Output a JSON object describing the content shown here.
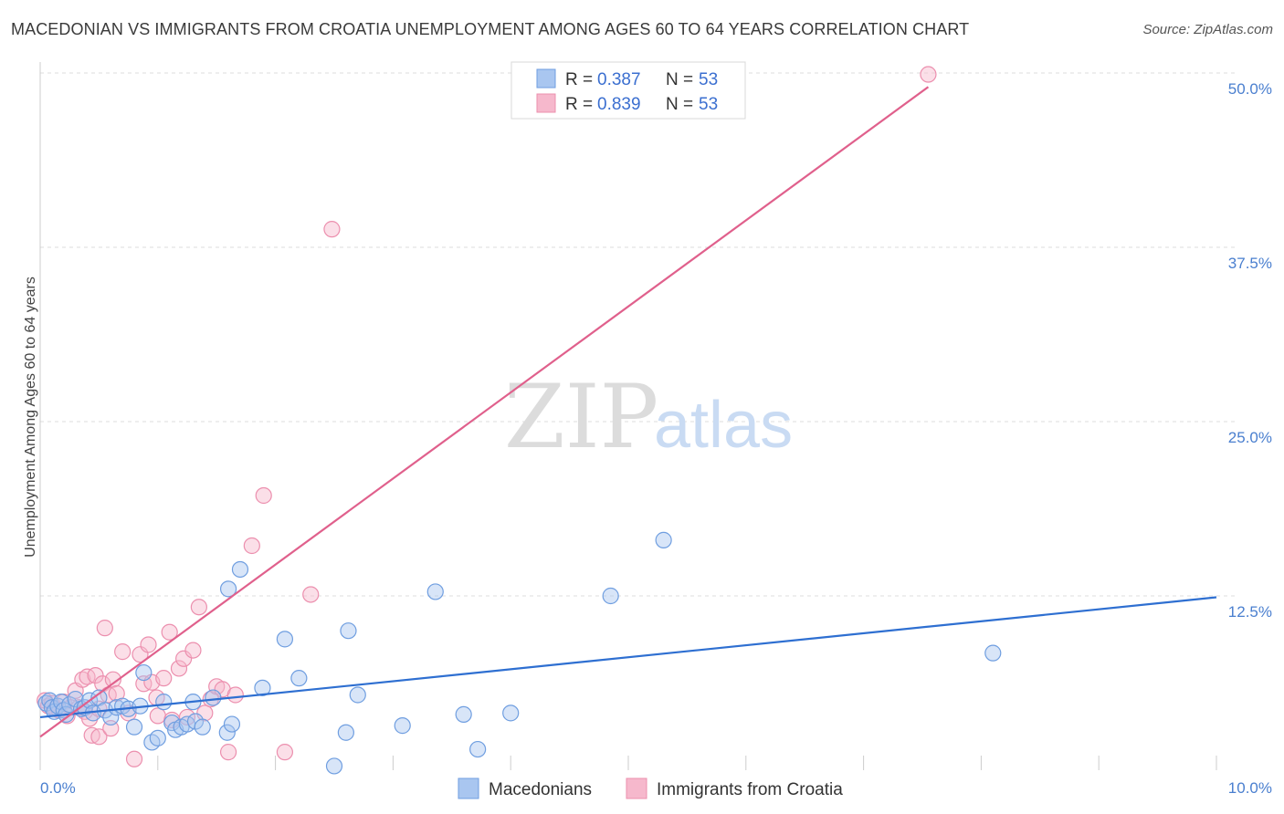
{
  "title": "MACEDONIAN VS IMMIGRANTS FROM CROATIA UNEMPLOYMENT AMONG AGES 60 TO 64 YEARS CORRELATION CHART",
  "source": "Source: ZipAtlas.com",
  "watermark": {
    "zip": "ZIP",
    "atlas": "atlas"
  },
  "legend": {
    "r_label": "R =",
    "n_label": "N =",
    "items": [
      {
        "r": "0.387",
        "n": "53"
      },
      {
        "r": "0.839",
        "n": "53"
      }
    ]
  },
  "colors": {
    "blue_fill": "#a9c6f0",
    "blue_stroke": "#6f9ee0",
    "blue_line": "#2e6fd1",
    "pink_fill": "#f6b8cc",
    "pink_stroke": "#ec8fae",
    "pink_line": "#e0608c",
    "grid": "#dddddd"
  },
  "chart_data": {
    "type": "scatter",
    "title": "MACEDONIAN VS IMMIGRANTS FROM CROATIA UNEMPLOYMENT AMONG AGES 60 TO 64 YEARS CORRELATION CHART",
    "xlabel": "",
    "ylabel": "Unemployment Among Ages 60 to 64 years",
    "xlim": [
      0,
      10
    ],
    "ylim": [
      0,
      50
    ],
    "x_tick_labels": [
      "0.0%",
      "10.0%"
    ],
    "y_ticks": [
      12.5,
      25.0,
      37.5,
      50.0
    ],
    "y_tick_labels": [
      "12.5%",
      "25.0%",
      "37.5%",
      "50.0%"
    ],
    "series": [
      {
        "name": "Macedonians",
        "trend": [
          [
            0,
            3.8
          ],
          [
            10,
            12.4
          ]
        ],
        "points": [
          [
            0.05,
            4.8
          ],
          [
            0.08,
            5.0
          ],
          [
            0.1,
            4.5
          ],
          [
            0.12,
            4.2
          ],
          [
            0.15,
            4.6
          ],
          [
            0.18,
            4.9
          ],
          [
            0.2,
            4.3
          ],
          [
            0.22,
            4.0
          ],
          [
            0.25,
            4.7
          ],
          [
            0.3,
            5.1
          ],
          [
            0.35,
            4.4
          ],
          [
            0.38,
            4.5
          ],
          [
            0.42,
            5.0
          ],
          [
            0.45,
            4.1
          ],
          [
            0.5,
            5.2
          ],
          [
            0.55,
            4.3
          ],
          [
            0.6,
            3.8
          ],
          [
            0.65,
            4.5
          ],
          [
            0.7,
            4.6
          ],
          [
            0.75,
            4.4
          ],
          [
            0.8,
            3.1
          ],
          [
            0.85,
            4.6
          ],
          [
            0.88,
            7.0
          ],
          [
            0.95,
            2.0
          ],
          [
            1.0,
            2.3
          ],
          [
            1.05,
            4.9
          ],
          [
            1.12,
            3.4
          ],
          [
            1.15,
            2.9
          ],
          [
            1.2,
            3.1
          ],
          [
            1.25,
            3.3
          ],
          [
            1.3,
            4.9
          ],
          [
            1.32,
            3.5
          ],
          [
            1.38,
            3.1
          ],
          [
            1.47,
            5.2
          ],
          [
            1.59,
            2.7
          ],
          [
            1.6,
            13.0
          ],
          [
            1.63,
            3.3
          ],
          [
            1.7,
            14.4
          ],
          [
            1.89,
            5.9
          ],
          [
            2.08,
            9.4
          ],
          [
            2.2,
            6.6
          ],
          [
            2.5,
            0.3
          ],
          [
            2.6,
            2.7
          ],
          [
            2.62,
            10.0
          ],
          [
            2.7,
            5.4
          ],
          [
            3.08,
            3.2
          ],
          [
            3.36,
            12.8
          ],
          [
            3.6,
            4.0
          ],
          [
            3.72,
            1.5
          ],
          [
            4.0,
            4.1
          ],
          [
            4.85,
            12.5
          ],
          [
            5.3,
            16.5
          ],
          [
            8.1,
            8.4
          ]
        ]
      },
      {
        "name": "Immigrants from Croatia",
        "trend": [
          [
            0,
            2.4
          ],
          [
            7.55,
            49.0
          ]
        ],
        "points": [
          [
            0.04,
            5.0
          ],
          [
            0.07,
            4.6
          ],
          [
            0.1,
            4.8
          ],
          [
            0.13,
            4.4
          ],
          [
            0.16,
            4.3
          ],
          [
            0.2,
            4.9
          ],
          [
            0.23,
            3.9
          ],
          [
            0.26,
            4.5
          ],
          [
            0.3,
            5.7
          ],
          [
            0.33,
            4.5
          ],
          [
            0.36,
            6.5
          ],
          [
            0.38,
            4.2
          ],
          [
            0.4,
            6.7
          ],
          [
            0.42,
            3.7
          ],
          [
            0.44,
            2.5
          ],
          [
            0.47,
            6.8
          ],
          [
            0.5,
            4.4
          ],
          [
            0.5,
            2.4
          ],
          [
            0.53,
            6.2
          ],
          [
            0.55,
            10.2
          ],
          [
            0.58,
            5.4
          ],
          [
            0.6,
            3.0
          ],
          [
            0.62,
            6.5
          ],
          [
            0.65,
            5.5
          ],
          [
            0.7,
            8.5
          ],
          [
            0.75,
            4.1
          ],
          [
            0.8,
            0.8
          ],
          [
            0.85,
            8.3
          ],
          [
            0.88,
            6.2
          ],
          [
            0.92,
            9.0
          ],
          [
            0.95,
            6.3
          ],
          [
            0.99,
            5.2
          ],
          [
            1.0,
            3.9
          ],
          [
            1.05,
            6.6
          ],
          [
            1.1,
            9.9
          ],
          [
            1.12,
            3.6
          ],
          [
            1.18,
            7.3
          ],
          [
            1.22,
            8.0
          ],
          [
            1.25,
            3.8
          ],
          [
            1.3,
            8.6
          ],
          [
            1.35,
            11.7
          ],
          [
            1.4,
            4.1
          ],
          [
            1.45,
            5.1
          ],
          [
            1.5,
            6.0
          ],
          [
            1.55,
            5.8
          ],
          [
            1.6,
            1.3
          ],
          [
            1.66,
            5.4
          ],
          [
            1.8,
            16.1
          ],
          [
            1.9,
            19.7
          ],
          [
            2.08,
            1.3
          ],
          [
            2.3,
            12.6
          ],
          [
            2.48,
            38.8
          ],
          [
            7.55,
            49.9
          ]
        ]
      }
    ]
  },
  "bottom_legend": [
    "Macedonians",
    "Immigrants from Croatia"
  ]
}
